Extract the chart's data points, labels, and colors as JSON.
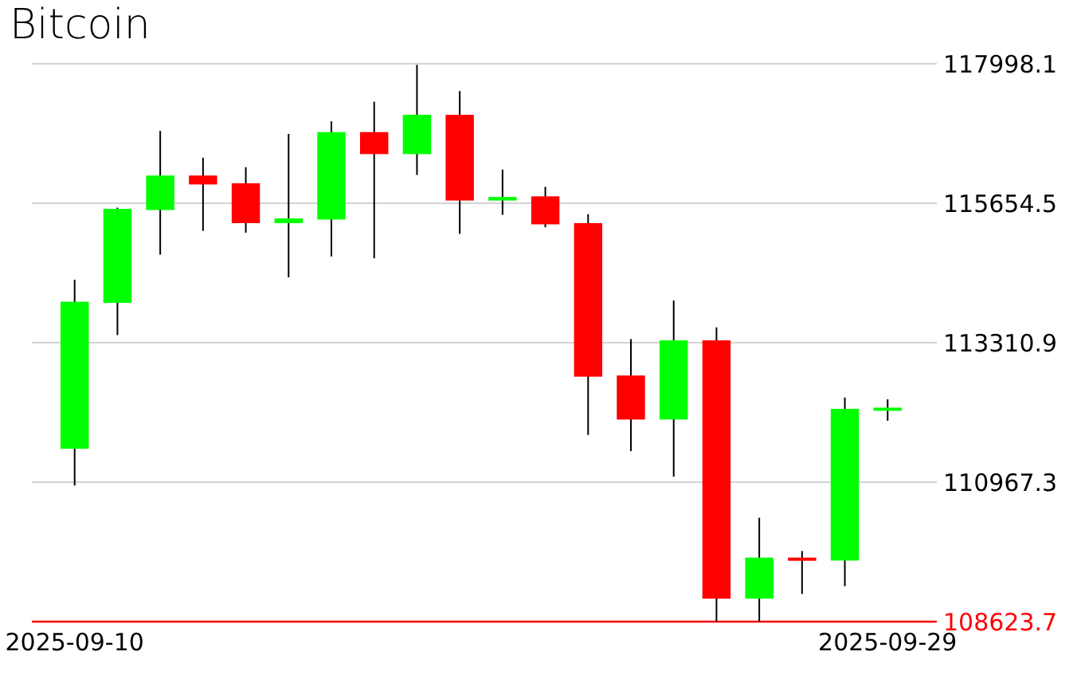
{
  "chart_data": {
    "type": "candlestick",
    "title": "Bitcoin",
    "categories": [
      "2025-09-10",
      null,
      null,
      null,
      null,
      null,
      null,
      null,
      null,
      null,
      null,
      null,
      null,
      null,
      null,
      null,
      null,
      null,
      null,
      "2025-09-29"
    ],
    "ohlc": [
      [
        111530,
        114370,
        110910,
        114000
      ],
      [
        113980,
        115580,
        113440,
        115560
      ],
      [
        115540,
        116870,
        114790,
        116120
      ],
      [
        116120,
        116420,
        115190,
        115970
      ],
      [
        115990,
        116260,
        115160,
        115320
      ],
      [
        115320,
        116820,
        114410,
        115400
      ],
      [
        115380,
        117030,
        114760,
        116850
      ],
      [
        116850,
        117360,
        114730,
        116480
      ],
      [
        116480,
        117980,
        116130,
        117140
      ],
      [
        117140,
        117540,
        115140,
        115700
      ],
      [
        115700,
        116220,
        115460,
        115760
      ],
      [
        115770,
        115930,
        115250,
        115300
      ],
      [
        115320,
        115470,
        111760,
        112740
      ],
      [
        112760,
        113370,
        111490,
        112020
      ],
      [
        112020,
        114020,
        111060,
        113350
      ],
      [
        113350,
        113570,
        108623.7,
        109010
      ],
      [
        109010,
        110370,
        108623.7,
        109700
      ],
      [
        109700,
        109810,
        109090,
        109650
      ],
      [
        109650,
        112390,
        109220,
        112200
      ],
      [
        112200,
        112360,
        112000,
        112220
      ]
    ],
    "colors": [
      "#00ff00",
      "#00ff00",
      "#00ff00",
      "#ff0000",
      "#ff0000",
      "#00ff00",
      "#00ff00",
      "#ff0000",
      "#00ff00",
      "#ff0000",
      "#00ff00",
      "#ff0000",
      "#ff0000",
      "#ff0000",
      "#00ff00",
      "#ff0000",
      "#00ff00",
      "#ff0000",
      "#00ff00",
      "#00ff00"
    ],
    "ylim": [
      108623.7,
      117998.1
    ],
    "yticks": [
      108623.7,
      110967.3,
      113310.9,
      115654.5,
      117998.1
    ],
    "grid": "y"
  }
}
